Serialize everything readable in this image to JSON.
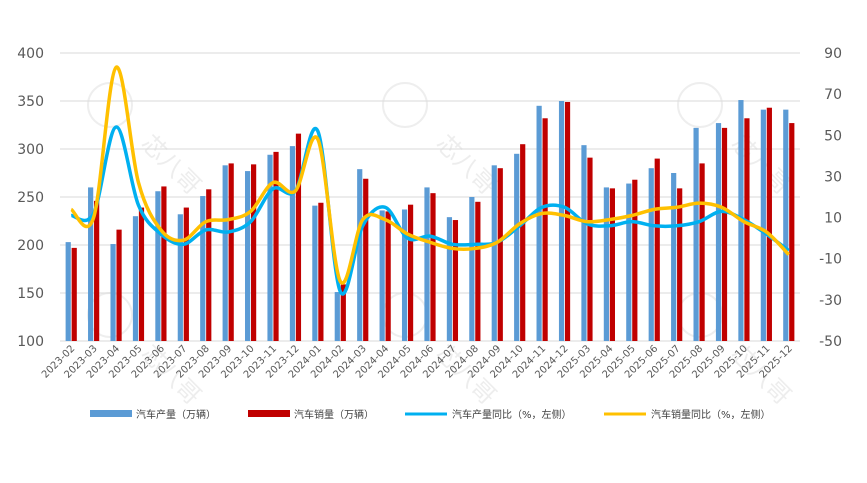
{
  "colors": {
    "production_bar": "#5B9BD5",
    "sales_bar": "#C00000",
    "production_yoy_line": "#00B0F0",
    "sales_yoy_line": "#FFC000",
    "axis_text": "#595959",
    "grid": "#d9d9d9"
  },
  "watermark": {
    "text": "芯八哥"
  },
  "chart_data": {
    "type": "bar",
    "categories": [
      "2023-02",
      "2023-03",
      "2023-04",
      "2023-05",
      "2023-06",
      "2023-07",
      "2023-08",
      "2023-09",
      "2023-10",
      "2023-11",
      "2023-12",
      "2024-01",
      "2024-02",
      "2024-03",
      "2024-04",
      "2024-05",
      "2024-06",
      "2024-07",
      "2024-08",
      "2024-09",
      "2024-10",
      "2024-11",
      "2024-12",
      "2025-03",
      "2025-04",
      "2025-05",
      "2025-06",
      "2025-07",
      "2025-08",
      "2025-09",
      "2025-10",
      "2025-11",
      "2025-12"
    ],
    "x_tick_labels": [
      "2023-02",
      "2023-03",
      "2023-04",
      "2023-05",
      "2023-06",
      "2023-07",
      "2023-08",
      "2023-09",
      "2023-10",
      "2023-11",
      "2023-12",
      "2024-01",
      "2024-02",
      "2024-03",
      "2024-04",
      "2024-05",
      "2024-06",
      "2024-07",
      "2024-08",
      "2024-09",
      "2024-10",
      "2024-11",
      "2024-12",
      "2025-03",
      "2025-04",
      "2025-05",
      "2025-06",
      "2025-07",
      "2025-08",
      "2025-09",
      "2025-10",
      "2025-11",
      "2025-12"
    ],
    "left_axis": {
      "ylim": [
        100,
        400
      ],
      "ticks": [
        "100",
        "150",
        "200",
        "250",
        "300",
        "350",
        "400"
      ]
    },
    "right_axis": {
      "ylim": [
        -50,
        90
      ],
      "ticks": [
        "-50",
        "-30",
        "-10",
        "10",
        "30",
        "50",
        "70",
        "90"
      ]
    },
    "series": [
      {
        "name": "汽车产量（万辆）",
        "kind": "bar",
        "axis": "left",
        "values": [
          203,
          260,
          201,
          230,
          256,
          232,
          251,
          283,
          277,
          294,
          303,
          241,
          151,
          279,
          236,
          237,
          260,
          229,
          250,
          283,
          295,
          345,
          350,
          304,
          260,
          264,
          280,
          275,
          322,
          327,
          351,
          341,
          341
        ]
      },
      {
        "name": "汽车销量（万辆）",
        "kind": "bar",
        "axis": "left",
        "values": [
          197,
          246,
          216,
          239,
          261,
          239,
          258,
          285,
          284,
          297,
          316,
          244,
          159,
          269,
          235,
          242,
          254,
          226,
          245,
          280,
          305,
          332,
          349,
          291,
          259,
          268,
          290,
          259,
          285,
          322,
          332,
          343,
          327
        ]
      },
      {
        "name": "汽车产量同比（%，左侧）",
        "kind": "line",
        "axis": "right",
        "values": [
          11,
          12,
          54,
          16,
          2,
          -3,
          4,
          3,
          8,
          24,
          23,
          52,
          -26,
          6,
          15,
          0,
          1,
          -3,
          -3,
          -2,
          6,
          15,
          15,
          7,
          6,
          8,
          6,
          6,
          8,
          13,
          9,
          2,
          -6
        ]
      },
      {
        "name": "汽车销量同比（%，左侧）",
        "kind": "line",
        "axis": "right",
        "values": [
          14,
          10,
          83,
          27,
          4,
          -1,
          8,
          9,
          13,
          27,
          23,
          48,
          -21,
          9,
          9,
          2,
          -2,
          -5,
          -5,
          -2,
          7,
          12,
          11,
          8,
          9,
          11,
          14,
          15,
          17,
          15,
          8,
          3,
          -8
        ]
      }
    ]
  }
}
